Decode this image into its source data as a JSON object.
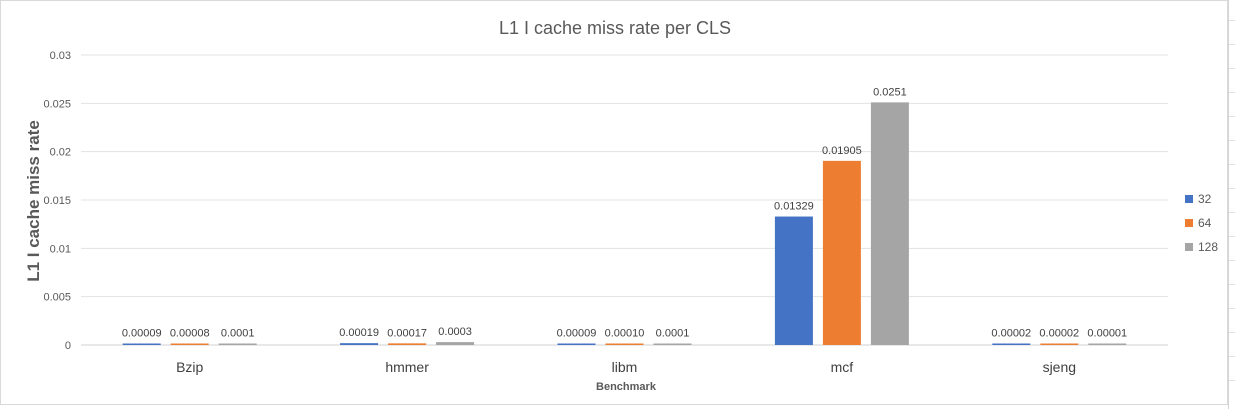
{
  "chart_data": {
    "type": "bar",
    "title": "L1 I cache miss rate per CLS",
    "xlabel": "Benchmark",
    "ylabel": "L1 I cache miss rate",
    "categories": [
      "Bzip",
      "hmmer",
      "libm",
      "mcf",
      "sjeng"
    ],
    "series": [
      {
        "name": "32",
        "color": "#4472C4",
        "values": [
          9e-05,
          0.00019,
          9e-05,
          0.01329,
          2e-05
        ],
        "labels": [
          "0.00009",
          "0.00019",
          "0.00009",
          "0.01329",
          "0.00002"
        ]
      },
      {
        "name": "64",
        "color": "#ED7D31",
        "values": [
          8e-05,
          0.00017,
          0.0001,
          0.01905,
          2e-05
        ],
        "labels": [
          "0.00008",
          "0.00017",
          "0.00010",
          "0.01905",
          "0.00002"
        ]
      },
      {
        "name": "128",
        "color": "#A5A5A5",
        "values": [
          0.0001,
          0.0003,
          0.0001,
          0.0251,
          1e-05
        ],
        "labels": [
          "0.0001",
          "0.0003",
          "0.0001",
          "0.0251",
          "0.00001"
        ]
      }
    ],
    "ylim": [
      0,
      0.03
    ],
    "yticks": [
      "0",
      "0.005",
      "0.01",
      "0.015",
      "0.02",
      "0.025",
      "0.03"
    ],
    "grid": true,
    "legend": "right"
  }
}
